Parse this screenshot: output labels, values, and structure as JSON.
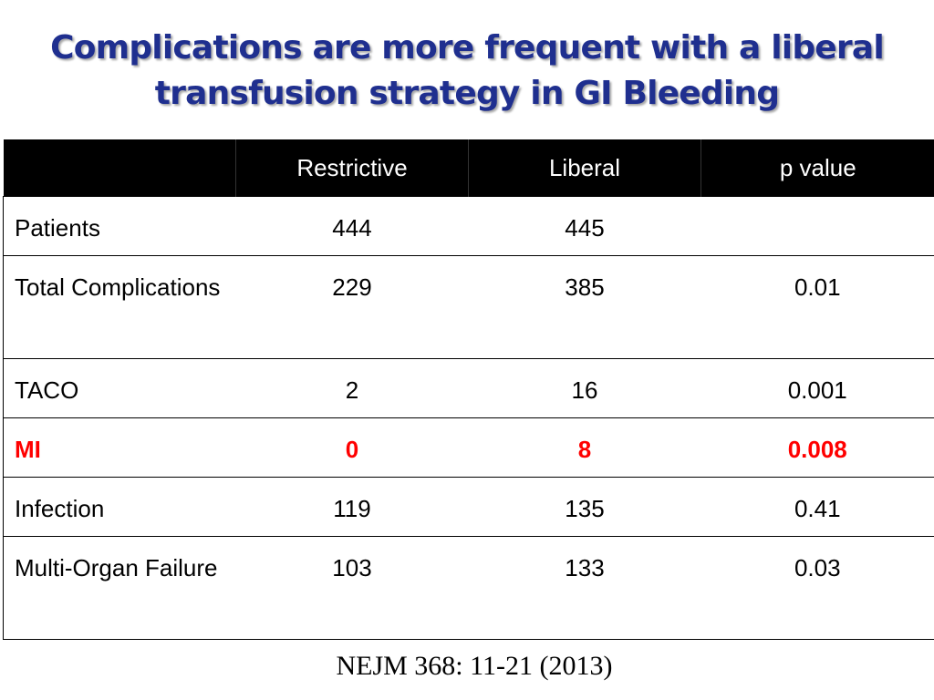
{
  "slide": {
    "title_line1": "Complications are more frequent with a liberal",
    "title_line2": "transfusion strategy in GI Bleeding",
    "title_color": "#1f2f8f",
    "highlight_color": "#ff0000",
    "citation": "NEJM 368: 11-21 (2013)"
  },
  "table": {
    "headers": [
      "",
      "Restrictive",
      "Liberal",
      "p value"
    ],
    "rows": [
      {
        "label": "Patients",
        "restrictive": "444",
        "liberal": "445",
        "p_value": ""
      },
      {
        "label": "Total Complications",
        "restrictive": "229",
        "liberal": "385",
        "p_value": "0.01"
      },
      {
        "label": "TACO",
        "restrictive": "2",
        "liberal": "16",
        "p_value": "0.001"
      },
      {
        "label": "MI",
        "restrictive": "0",
        "liberal": "8",
        "p_value": "0.008",
        "highlighted": true
      },
      {
        "label": "Infection",
        "restrictive": "119",
        "liberal": "135",
        "p_value": "0.41"
      },
      {
        "label": "Multi-Organ Failure",
        "restrictive": "103",
        "liberal": "133",
        "p_value": "0.03"
      }
    ]
  }
}
